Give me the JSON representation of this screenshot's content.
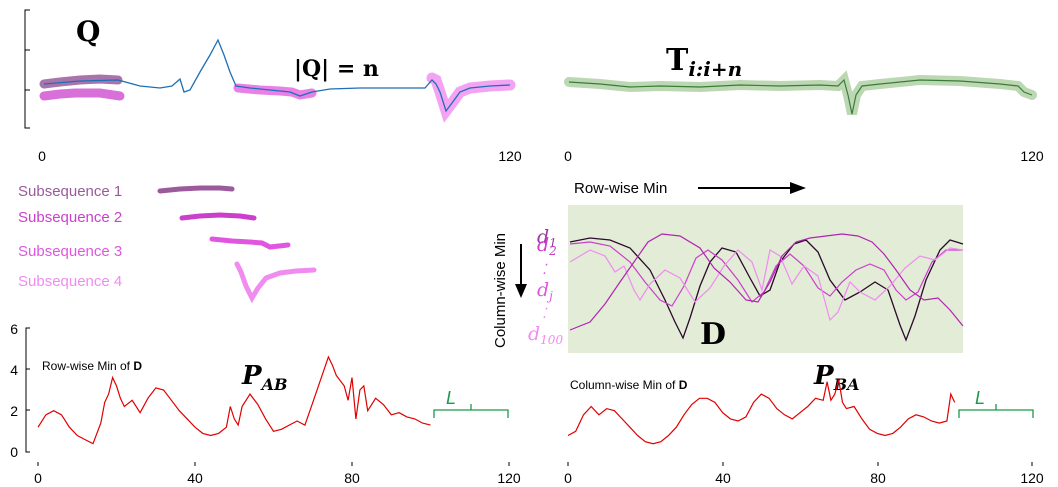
{
  "colors": {
    "query_line": "#1f6fb5",
    "sub1": "#9a5a9c",
    "sub2": "#cc3fcc",
    "sub3": "#e056e0",
    "sub4": "#f08cf0",
    "green_band": "#bcd8b2",
    "matrix_bg": "#e2ecd6",
    "profile": "#e00000",
    "window": "#1a9a4a"
  },
  "top_left": {
    "title": "Q",
    "length_label": "|Q| = n",
    "x_ticks": [
      "0",
      "120"
    ]
  },
  "top_right": {
    "title": "T",
    "title_sub": "i:i+n",
    "x_ticks": [
      "0",
      "120"
    ]
  },
  "subsequences": [
    "Subsequence 1",
    "Subsequence 2",
    "Subsequence 3",
    "Subsequence 4"
  ],
  "matrix": {
    "row_label": "Row-wise Min",
    "col_label": "Column-wise Min",
    "title": "D",
    "row_names": [
      {
        "base": "d",
        "sub": "1"
      },
      {
        "base": "d",
        "sub": "2"
      },
      {
        "base": "⁚",
        "sub": ""
      },
      {
        "base": "d",
        "sub": "j"
      },
      {
        "base": "⁚",
        "sub": ""
      },
      {
        "base": "d",
        "sub": "100"
      }
    ]
  },
  "bottom_left": {
    "caption": "Row-wise Min of ",
    "caption_bold": "D",
    "symbol": "P",
    "symbol_sub": "AB",
    "window": "L",
    "y_ticks": [
      "0",
      "2",
      "4",
      "6"
    ],
    "x_ticks": [
      "0",
      "40",
      "80",
      "120"
    ]
  },
  "bottom_right": {
    "caption": "Column-wise Min of ",
    "caption_bold": "D",
    "symbol": "P",
    "symbol_sub": "BA",
    "window": "L",
    "x_ticks": [
      "0",
      "40",
      "80",
      "120"
    ]
  },
  "chart_data": [
    {
      "type": "line",
      "x": [
        0,
        2,
        4,
        6,
        8,
        10,
        12,
        14,
        16,
        17,
        18,
        19,
        20,
        21,
        22,
        24,
        26,
        28,
        30,
        32,
        34,
        36,
        38,
        40,
        42,
        44,
        46,
        48,
        49,
        50,
        51,
        52,
        54,
        56,
        58,
        60,
        62,
        64,
        66,
        68,
        70,
        72,
        74,
        75,
        76,
        78,
        79,
        80,
        81,
        82,
        83,
        84,
        86,
        88,
        90,
        92,
        94,
        96,
        98,
        100
      ],
      "series": [
        {
          "values": [
            1.2,
            1.8,
            2.0,
            1.8,
            1.2,
            0.8,
            0.6,
            0.4,
            1.4,
            2.4,
            2.8,
            3.6,
            3.2,
            2.6,
            2.2,
            2.5,
            1.9,
            2.6,
            3.1,
            3.0,
            2.5,
            2.0,
            1.6,
            1.2,
            0.9,
            0.8,
            0.9,
            1.2,
            2.2,
            1.6,
            1.3,
            2.2,
            2.8,
            2.3,
            1.6,
            1.0,
            1.1,
            1.3,
            1.5,
            1.3,
            2.4,
            3.5,
            4.6,
            4.2,
            3.7,
            3.2,
            2.5,
            3.6,
            1.6,
            3.0,
            3.2,
            2.0,
            2.6,
            2.3,
            1.8,
            1.9,
            1.7,
            1.6,
            1.4,
            1.3
          ]
        }
      ],
      "xlim": [
        0,
        120
      ],
      "ylim": [
        0,
        6
      ]
    },
    {
      "type": "line",
      "x": [
        0,
        2,
        4,
        6,
        8,
        10,
        12,
        14,
        16,
        18,
        20,
        22,
        24,
        26,
        28,
        30,
        32,
        34,
        36,
        38,
        40,
        42,
        44,
        46,
        48,
        50,
        52,
        54,
        56,
        58,
        60,
        62,
        64,
        66,
        67,
        68,
        69,
        70,
        71,
        72,
        74,
        76,
        78,
        80,
        82,
        84,
        86,
        88,
        90,
        92,
        94,
        96,
        98,
        99,
        100
      ],
      "series": [
        {
          "values": [
            0.8,
            1.0,
            1.8,
            2.2,
            1.8,
            2.1,
            2.0,
            1.6,
            1.2,
            0.8,
            0.5,
            0.4,
            0.5,
            0.8,
            1.2,
            1.8,
            2.3,
            2.6,
            2.6,
            2.4,
            1.9,
            1.6,
            1.5,
            1.7,
            2.4,
            2.8,
            2.6,
            2.1,
            1.8,
            1.6,
            1.9,
            2.2,
            2.6,
            2.5,
            3.4,
            2.5,
            2.8,
            3.5,
            2.4,
            2.1,
            2.2,
            1.6,
            1.1,
            0.9,
            0.8,
            0.9,
            1.2,
            1.6,
            1.8,
            1.7,
            1.5,
            1.4,
            1.5,
            2.8,
            2.4
          ]
        }
      ],
      "xlim": [
        0,
        120
      ],
      "ylim": [
        0,
        6
      ]
    }
  ]
}
